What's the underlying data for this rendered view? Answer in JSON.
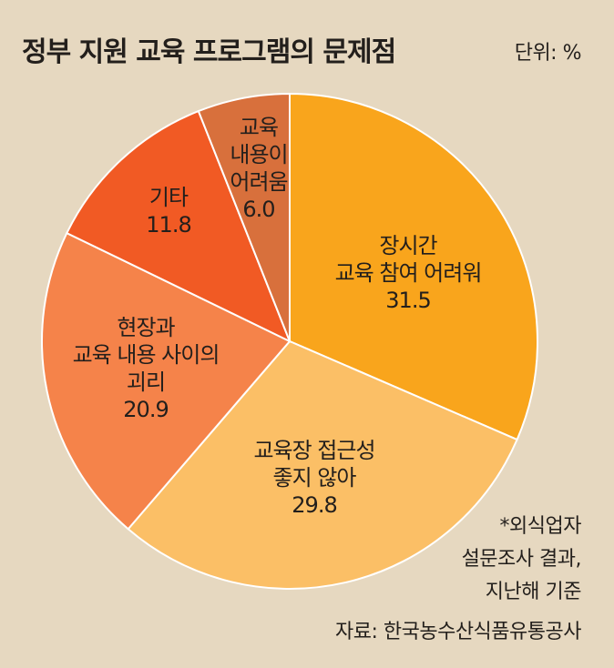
{
  "title": "정부 지원 교육 프로그램의 문제점",
  "unit": "단위: %",
  "notes": [
    "*외식업자",
    "설문조사 결과,",
    "지난해 기준"
  ],
  "source": "자료: 한국농수산식품유통공사",
  "colors": [
    "#f9a51c",
    "#fbbf66",
    "#f5834a",
    "#f15a24",
    "#d8703c"
  ],
  "chart_data": {
    "type": "pie",
    "title": "정부 지원 교육 프로그램의 문제점",
    "unit": "%",
    "slices": [
      {
        "label": [
          "장시간",
          "교육 참여 어려워"
        ],
        "value": 31.5,
        "display": "31.5"
      },
      {
        "label": [
          "교육장 접근성",
          "좋지 않아"
        ],
        "value": 29.8,
        "display": "29.8"
      },
      {
        "label": [
          "현장과",
          "교육 내용 사이의",
          "괴리"
        ],
        "value": 20.9,
        "display": "20.9"
      },
      {
        "label": [
          "기타"
        ],
        "value": 11.8,
        "display": "11.8"
      },
      {
        "label": [
          "교육",
          "내용이",
          "어려움"
        ],
        "value": 6.0,
        "display": "6.0"
      }
    ]
  }
}
